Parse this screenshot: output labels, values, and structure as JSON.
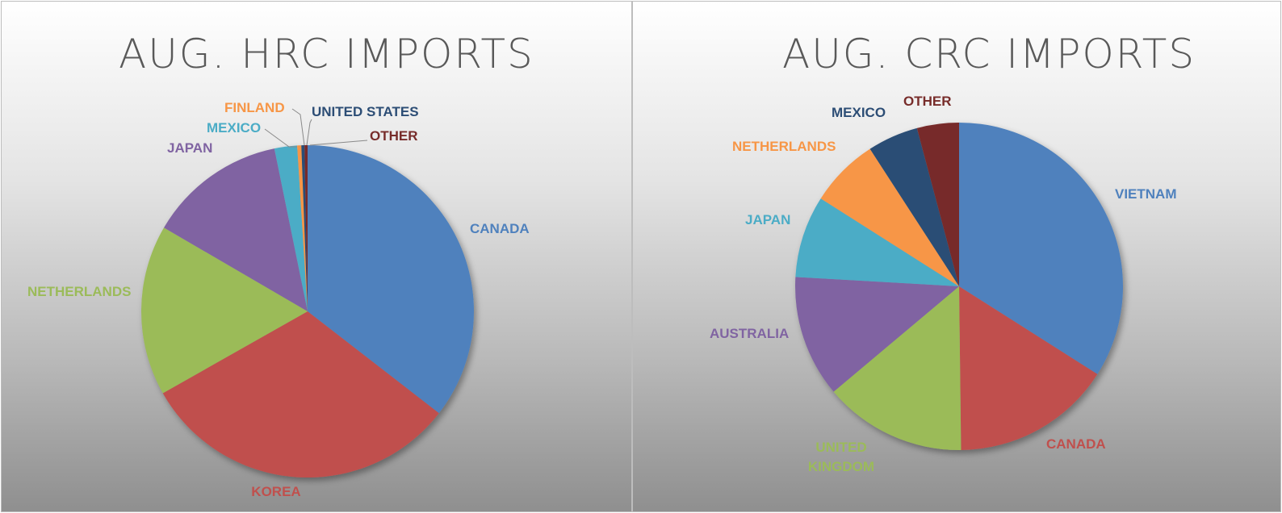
{
  "chart_data": [
    {
      "type": "pie",
      "title": "AUG. HRC IMPORTS",
      "slices": [
        {
          "label": "CANADA",
          "value": 35.5,
          "color": "#4f81bd"
        },
        {
          "label": "KOREA",
          "value": 31.3,
          "color": "#c0504d"
        },
        {
          "label": "NETHERLANDS",
          "value": 16.6,
          "color": "#9bbb59"
        },
        {
          "label": "JAPAN",
          "value": 13.4,
          "color": "#8064a2"
        },
        {
          "label": "MEXICO",
          "value": 2.2,
          "color": "#4bacc6"
        },
        {
          "label": "FINLAND",
          "value": 0.4,
          "color": "#f79646"
        },
        {
          "label": "UNITED STATES",
          "value": 0.3,
          "color": "#2c4d75"
        },
        {
          "label": "OTHER",
          "value": 0.3,
          "color": "#772c2a"
        }
      ]
    },
    {
      "type": "pie",
      "title": "AUG. CRC IMPORTS",
      "slices": [
        {
          "label": "VIETNAM",
          "value": 35.3,
          "color": "#4f81bd"
        },
        {
          "label": "CANADA",
          "value": 16.4,
          "color": "#c0504d"
        },
        {
          "label": "UNITED KINGDOM",
          "value": 14.6,
          "color": "#9bbb59"
        },
        {
          "label": "AUSTRALIA",
          "value": 12.5,
          "color": "#8064a2"
        },
        {
          "label": "JAPAN",
          "value": 8.4,
          "color": "#4bacc6"
        },
        {
          "label": "NETHERLANDS",
          "value": 7.1,
          "color": "#f79646"
        },
        {
          "label": "MEXICO",
          "value": 5.2,
          "color": "#2c4d75"
        },
        {
          "label": "OTHER",
          "value": 4.3,
          "color": "#772c2a"
        }
      ]
    }
  ]
}
